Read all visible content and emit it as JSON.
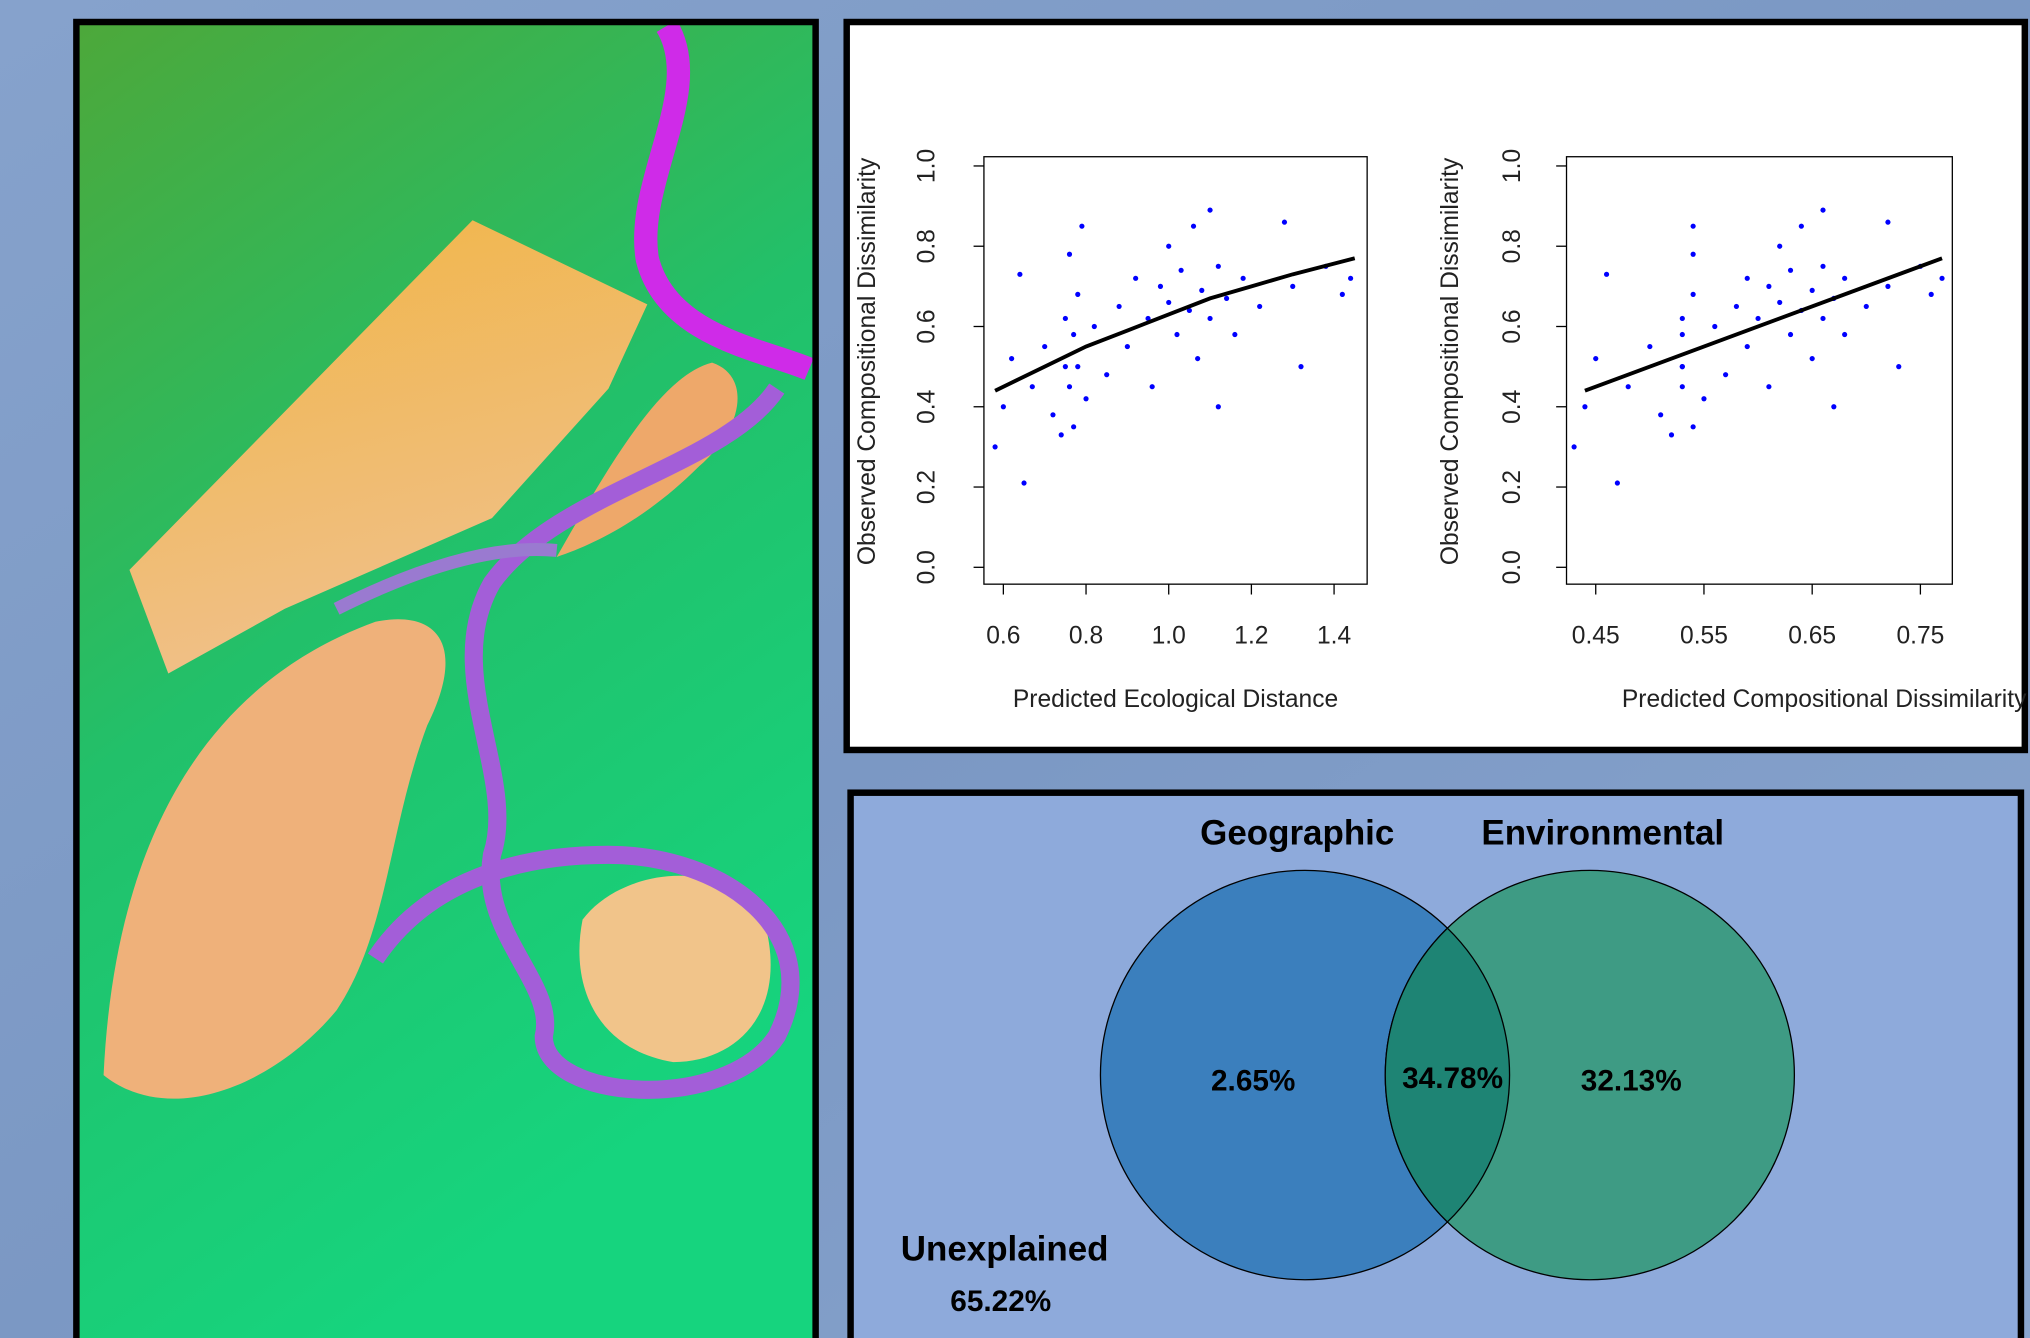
{
  "chart_data": [
    {
      "type": "scatter",
      "x_label": "Predicted Ecological Distance",
      "y_label": "Observed Compositional Dissimilarity",
      "color": "#0000ff",
      "line_color": "#000000",
      "xlim": [
        0.553,
        1.48
      ],
      "ylim": [
        -0.042,
        1.023
      ],
      "xticks": [
        0.6,
        0.8,
        {
          "value": 1,
          "label": "1.0"
        },
        1.2,
        1.4
      ],
      "yticks": [
        {
          "value": 0,
          "label": "0.0"
        },
        0.2,
        0.4,
        0.6,
        0.8,
        {
          "value": 1,
          "label": "1.0"
        }
      ],
      "x": [
        0.58,
        0.6,
        0.62,
        0.64,
        0.65,
        0.67,
        0.7,
        0.72,
        0.74,
        0.75,
        0.75,
        0.76,
        0.76,
        0.77,
        0.77,
        0.78,
        0.78,
        0.79,
        0.8,
        0.82,
        0.85,
        0.88,
        0.9,
        0.92,
        0.95,
        0.96,
        0.98,
        1.0,
        1.0,
        1.02,
        1.03,
        1.05,
        1.06,
        1.07,
        1.08,
        1.1,
        1.1,
        1.12,
        1.12,
        1.14,
        1.16,
        1.18,
        1.22,
        1.28,
        1.3,
        1.32,
        1.38,
        1.42,
        1.44
      ],
      "values": [
        0.3,
        0.4,
        0.52,
        0.73,
        0.21,
        0.45,
        0.55,
        0.38,
        0.33,
        0.5,
        0.62,
        0.45,
        0.78,
        0.58,
        0.35,
        0.68,
        0.5,
        0.85,
        0.42,
        0.6,
        0.48,
        0.65,
        0.55,
        0.72,
        0.62,
        0.45,
        0.7,
        0.66,
        0.8,
        0.58,
        0.74,
        0.64,
        0.85,
        0.52,
        0.69,
        0.62,
        0.89,
        0.75,
        0.4,
        0.67,
        0.58,
        0.72,
        0.65,
        0.86,
        0.7,
        0.5,
        0.75,
        0.68,
        0.72
      ],
      "fit": {
        "x": [
          0.58,
          0.7,
          0.8,
          0.9,
          1.0,
          1.1,
          1.2,
          1.3,
          1.45
        ],
        "values": [
          0.44,
          0.5,
          0.55,
          0.59,
          0.63,
          0.67,
          0.7,
          0.73,
          0.77
        ]
      }
    },
    {
      "type": "scatter",
      "x_label": "Predicted Compositional Dissimilarity",
      "y_label": "Observed Compositional Dissimilarity",
      "color": "#0000ff",
      "line_color": "#000000",
      "xlim": [
        0.423,
        0.7795
      ],
      "ylim": [
        -0.042,
        1.023
      ],
      "xticks": [
        0.45,
        0.55,
        0.65,
        0.75
      ],
      "yticks": [
        {
          "value": 0,
          "label": "0.0"
        },
        0.2,
        0.4,
        0.6,
        0.8,
        {
          "value": 1,
          "label": "1.0"
        }
      ],
      "x": [
        0.43,
        0.44,
        0.45,
        0.46,
        0.47,
        0.48,
        0.5,
        0.51,
        0.52,
        0.53,
        0.53,
        0.53,
        0.54,
        0.53,
        0.54,
        0.54,
        0.53,
        0.54,
        0.55,
        0.56,
        0.57,
        0.58,
        0.59,
        0.59,
        0.6,
        0.61,
        0.61,
        0.62,
        0.62,
        0.63,
        0.63,
        0.64,
        0.64,
        0.65,
        0.65,
        0.66,
        0.66,
        0.66,
        0.67,
        0.67,
        0.68,
        0.68,
        0.7,
        0.72,
        0.72,
        0.73,
        0.75,
        0.76,
        0.77
      ],
      "values": [
        0.3,
        0.4,
        0.52,
        0.73,
        0.21,
        0.45,
        0.55,
        0.38,
        0.33,
        0.5,
        0.62,
        0.45,
        0.78,
        0.58,
        0.35,
        0.68,
        0.5,
        0.85,
        0.42,
        0.6,
        0.48,
        0.65,
        0.55,
        0.72,
        0.62,
        0.45,
        0.7,
        0.66,
        0.8,
        0.58,
        0.74,
        0.64,
        0.85,
        0.52,
        0.69,
        0.62,
        0.89,
        0.75,
        0.4,
        0.67,
        0.58,
        0.72,
        0.65,
        0.86,
        0.7,
        0.5,
        0.75,
        0.68,
        0.72
      ],
      "fit": {
        "x": [
          0.44,
          0.77
        ],
        "values": [
          0.44,
          0.77
        ]
      }
    },
    {
      "type": "venn",
      "sets": [
        {
          "name": "Geographic",
          "values": [
            2.65
          ],
          "value_labels": [
            "2.65%"
          ],
          "color": "#3b7fbd"
        },
        {
          "name": "Environmental",
          "values": [
            32.13
          ],
          "value_labels": [
            "32.13%"
          ],
          "color": "#3a9a80"
        }
      ],
      "overlap": {
        "values": [
          34.78
        ],
        "value_labels": [
          "34.78%"
        ],
        "color": "#1e8474"
      },
      "unexplained": {
        "name": "Unexplained",
        "values": [
          65.22
        ],
        "value_labels": [
          "65.22%"
        ]
      }
    }
  ]
}
